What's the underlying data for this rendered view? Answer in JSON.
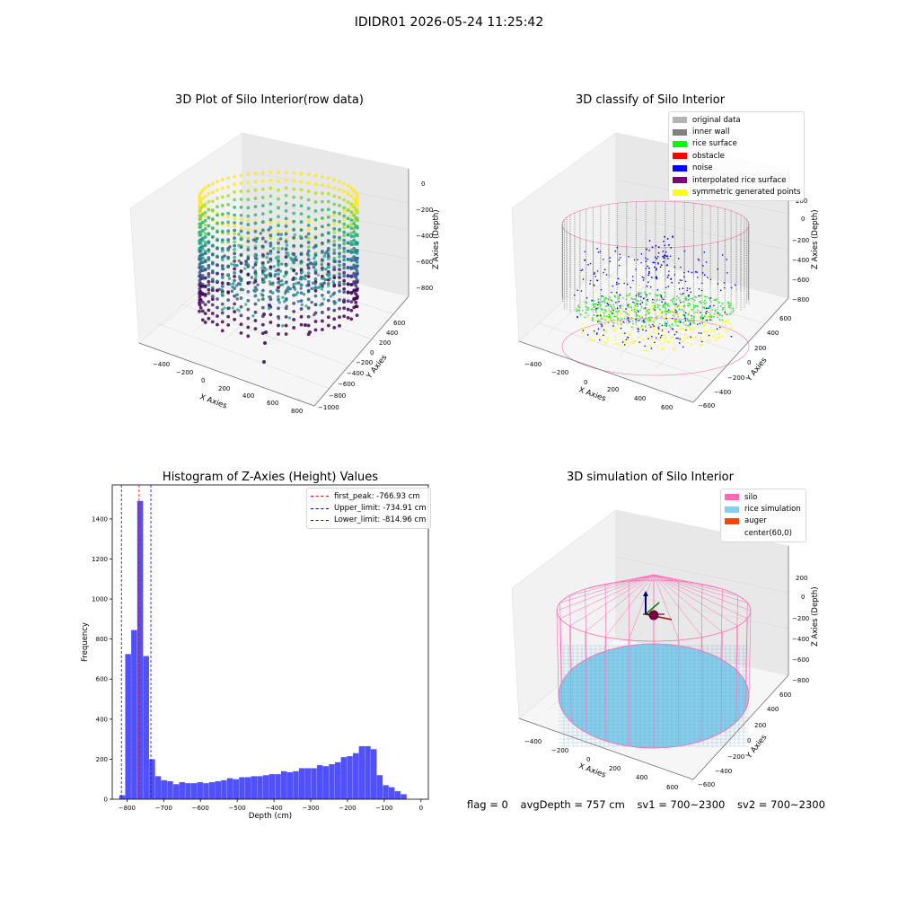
{
  "suptitle": "IDIDR01 2026-05-24 11:25:42",
  "colors": {
    "original_data": "#b3b3b3",
    "inner_wall": "#808080",
    "rice_surface": "#00ff00",
    "obstacle": "#ff0000",
    "noise": "#0000ff",
    "interpolated": "#800080",
    "symmetric": "#ffff00",
    "silo": "#ff69b4",
    "rice_sim": "#87ceeb",
    "auger": "#ff4500",
    "hist_bar": "#5050ff"
  },
  "raw_plot": {
    "title": "3D Plot of Silo Interior(row data)",
    "x_label": "X Axies",
    "y_label": "Y Axies",
    "z_label": "Z Axies (Depth)",
    "x_ticks": [
      "−400",
      "−200",
      "0",
      "200",
      "400",
      "600",
      "800"
    ],
    "y_ticks": [
      "−1000",
      "−800",
      "−600",
      "−400",
      "−200",
      "0",
      "200",
      "400",
      "600"
    ],
    "z_ticks": [
      "0",
      "−200",
      "−400",
      "−600",
      "−800"
    ]
  },
  "classify_plot": {
    "title": "3D classify of Silo Interior",
    "x_label": "X Axies",
    "y_label": "Y Axies",
    "z_label": "Z Axies (Depth)",
    "x_ticks": [
      "−400",
      "−200",
      "0",
      "200",
      "400",
      "600"
    ],
    "y_ticks": [
      "−600",
      "−400",
      "−200",
      "0",
      "200",
      "400",
      "600"
    ],
    "z_ticks": [
      "200",
      "0",
      "−200",
      "−400",
      "−600",
      "−800"
    ],
    "legend": [
      {
        "label": "original data",
        "color": "#b3b3b3"
      },
      {
        "label": "inner wall",
        "color": "#808080"
      },
      {
        "label": "rice surface",
        "color": "#00ff00"
      },
      {
        "label": "obstacle",
        "color": "#ff0000"
      },
      {
        "label": "noise",
        "color": "#0000ff"
      },
      {
        "label": "interpolated rice surface",
        "color": "#800080"
      },
      {
        "label": "symmetric generated points",
        "color": "#ffff00"
      }
    ]
  },
  "chart_data": {
    "type": "bar",
    "title": "Histogram of Z-Axies (Height) Values",
    "xlabel": "Depth (cm)",
    "ylabel": "Frequency",
    "xlim": [
      -840,
      20
    ],
    "ylim": [
      0,
      1570
    ],
    "x_ticks": [
      -800,
      -700,
      -600,
      -500,
      -400,
      -300,
      -200,
      -100,
      0
    ],
    "y_ticks": [
      0,
      200,
      400,
      600,
      800,
      1000,
      1200,
      1400
    ],
    "bin_width": 16.3,
    "bin_starts": [
      -821,
      -804.7,
      -788.4,
      -772.1,
      -755.8,
      -739.5,
      -723.2,
      -706.9,
      -690.6,
      -674.3,
      -658,
      -641.7,
      -625.4,
      -609.1,
      -592.8,
      -576.5,
      -560.2,
      -543.9,
      -527.6,
      -511.3,
      -495,
      -478.7,
      -462.4,
      -446.1,
      -429.8,
      -413.5,
      -397.2,
      -380.9,
      -364.6,
      -348.3,
      -332,
      -315.7,
      -299.4,
      -283.1,
      -266.8,
      -250.5,
      -234.2,
      -217.9,
      -201.6,
      -185.3,
      -169,
      -152.7,
      -136.4,
      -120.1,
      -103.8,
      -87.5,
      -71.2,
      -54.9,
      -38.6,
      -22.3
    ],
    "values": [
      20,
      725,
      845,
      1490,
      715,
      200,
      115,
      95,
      90,
      75,
      85,
      80,
      80,
      85,
      80,
      85,
      90,
      95,
      105,
      100,
      110,
      110,
      115,
      115,
      120,
      125,
      125,
      140,
      135,
      140,
      155,
      155,
      155,
      170,
      165,
      175,
      185,
      210,
      215,
      230,
      265,
      265,
      250,
      120,
      70,
      60,
      40,
      25,
      0,
      0
    ],
    "vlines": [
      {
        "name": "first_peak: -766.93 cm",
        "x": -766.93,
        "color": "#ff0000"
      },
      {
        "name": "Upper_limit: -734.91 cm",
        "x": -734.91,
        "color": "#0000ff"
      },
      {
        "name": "Lower_limit: -814.96 cm",
        "x": -814.96,
        "color": "#0000ff"
      }
    ],
    "legend_position": "top-right"
  },
  "sim_plot": {
    "title": "3D simulation of Silo Interior",
    "x_label": "X Axies",
    "y_label": "Y Axies",
    "z_label": "Z Axies (Depth)",
    "x_ticks": [
      "−400",
      "−200",
      "0",
      "200",
      "400",
      "600"
    ],
    "y_ticks": [
      "−600",
      "−400",
      "−200",
      "0",
      "200",
      "400",
      "600"
    ],
    "z_ticks": [
      "200",
      "0",
      "−200",
      "−400",
      "−600",
      "−800"
    ],
    "legend": [
      {
        "label": "silo",
        "color": "#ff69b4"
      },
      {
        "label": "rice simulation",
        "color": "#87ceeb"
      },
      {
        "label": "auger",
        "color": "#ff4500"
      },
      {
        "label": "center(60,0)",
        "color": ""
      }
    ]
  },
  "footer": {
    "flag": "flag = 0",
    "avg_depth": "avgDepth = 757 cm",
    "sv1": "sv1 = 700~2300",
    "sv2": "sv2 = 700~2300"
  }
}
